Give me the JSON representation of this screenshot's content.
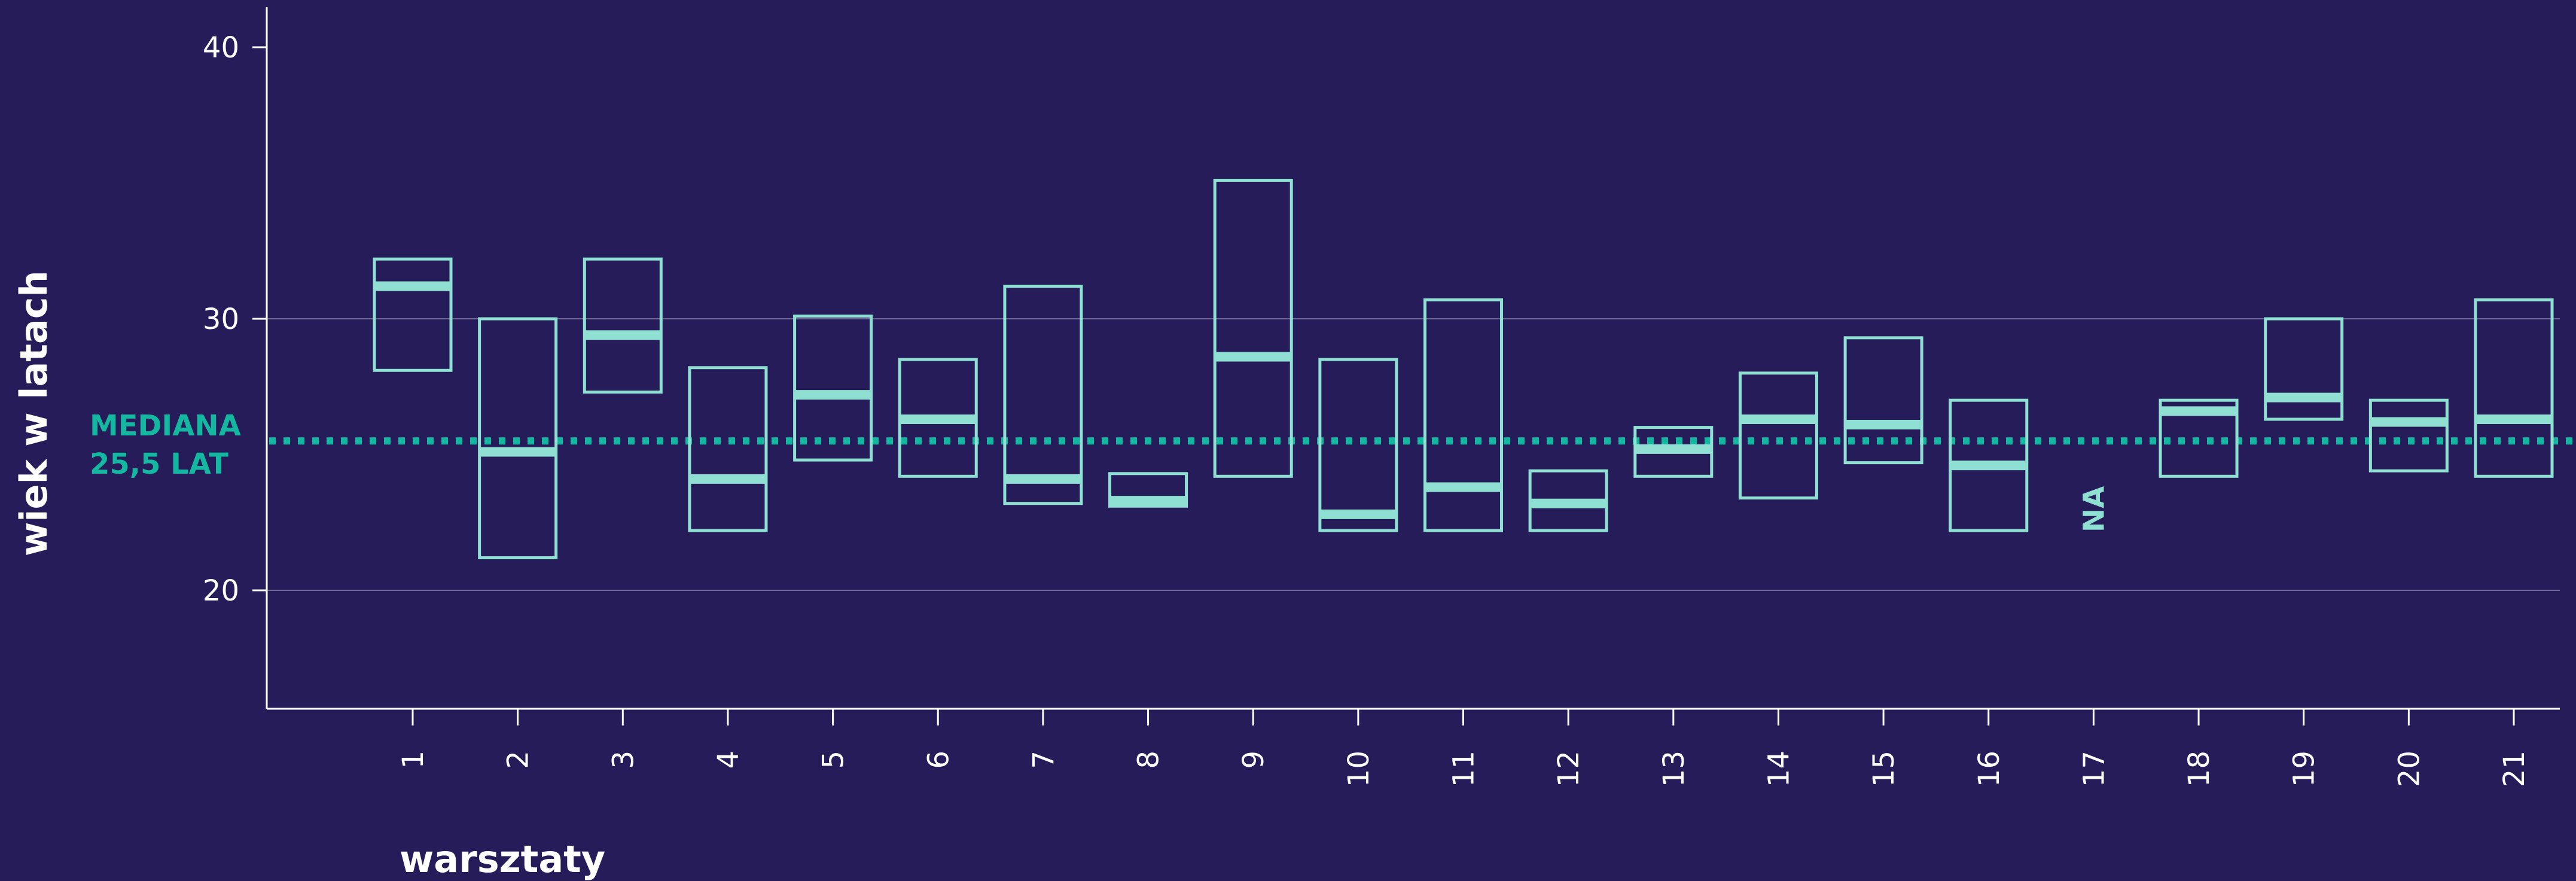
{
  "chart_data": {
    "type": "box",
    "title": "",
    "xlabel": "warsztaty",
    "ylabel": "wiek w latach",
    "ylim": [
      15.7,
      41.5
    ],
    "yticks": [
      20,
      30,
      40
    ],
    "ytick_labels": [
      "20",
      "30",
      "40"
    ],
    "grid": "horizontal",
    "categories": [
      "1",
      "2",
      "3",
      "4",
      "5",
      "6",
      "7",
      "8",
      "9",
      "10",
      "11",
      "12",
      "13",
      "14",
      "15",
      "16",
      "17",
      "18",
      "19",
      "20",
      "21"
    ],
    "boxes": [
      {
        "low": 28.1,
        "high": 32.2,
        "median": 31.2
      },
      {
        "low": 21.2,
        "high": 30.0,
        "median": 25.1
      },
      {
        "low": 27.3,
        "high": 32.2,
        "median": 29.4
      },
      {
        "low": 22.2,
        "high": 28.2,
        "median": 24.1
      },
      {
        "low": 24.8,
        "high": 30.1,
        "median": 27.2
      },
      {
        "low": 24.2,
        "high": 28.5,
        "median": 26.3
      },
      {
        "low": 23.2,
        "high": 31.2,
        "median": 24.1
      },
      {
        "low": 23.1,
        "high": 24.3,
        "median": 23.3
      },
      {
        "low": 24.2,
        "high": 35.1,
        "median": 28.6
      },
      {
        "low": 22.2,
        "high": 28.5,
        "median": 22.8
      },
      {
        "low": 22.2,
        "high": 30.7,
        "median": 23.8
      },
      {
        "low": 22.2,
        "high": 24.4,
        "median": 23.2
      },
      {
        "low": 24.2,
        "high": 26.0,
        "median": 25.2
      },
      {
        "low": 23.4,
        "high": 28.0,
        "median": 26.3
      },
      {
        "low": 24.7,
        "high": 29.3,
        "median": 26.1
      },
      {
        "low": 22.2,
        "high": 27.0,
        "median": 24.6
      },
      null,
      {
        "low": 24.2,
        "high": 27.0,
        "median": 26.6
      },
      {
        "low": 26.3,
        "high": 30.0,
        "median": 27.1
      },
      {
        "low": 24.4,
        "high": 27.0,
        "median": 26.2
      },
      {
        "low": 24.2,
        "high": 30.7,
        "median": 26.3
      }
    ],
    "reference_line": {
      "value": 25.5,
      "label_line1": "MEDIANA",
      "label_line2": "25,5 LAT"
    },
    "missing_label": "NA",
    "colors": {
      "background": "#251c59",
      "box": "#8fdfd2",
      "median_line": "#14b8a0",
      "grid": "#6b6494",
      "axis": "#ffffff",
      "text": "#ffffff"
    }
  }
}
